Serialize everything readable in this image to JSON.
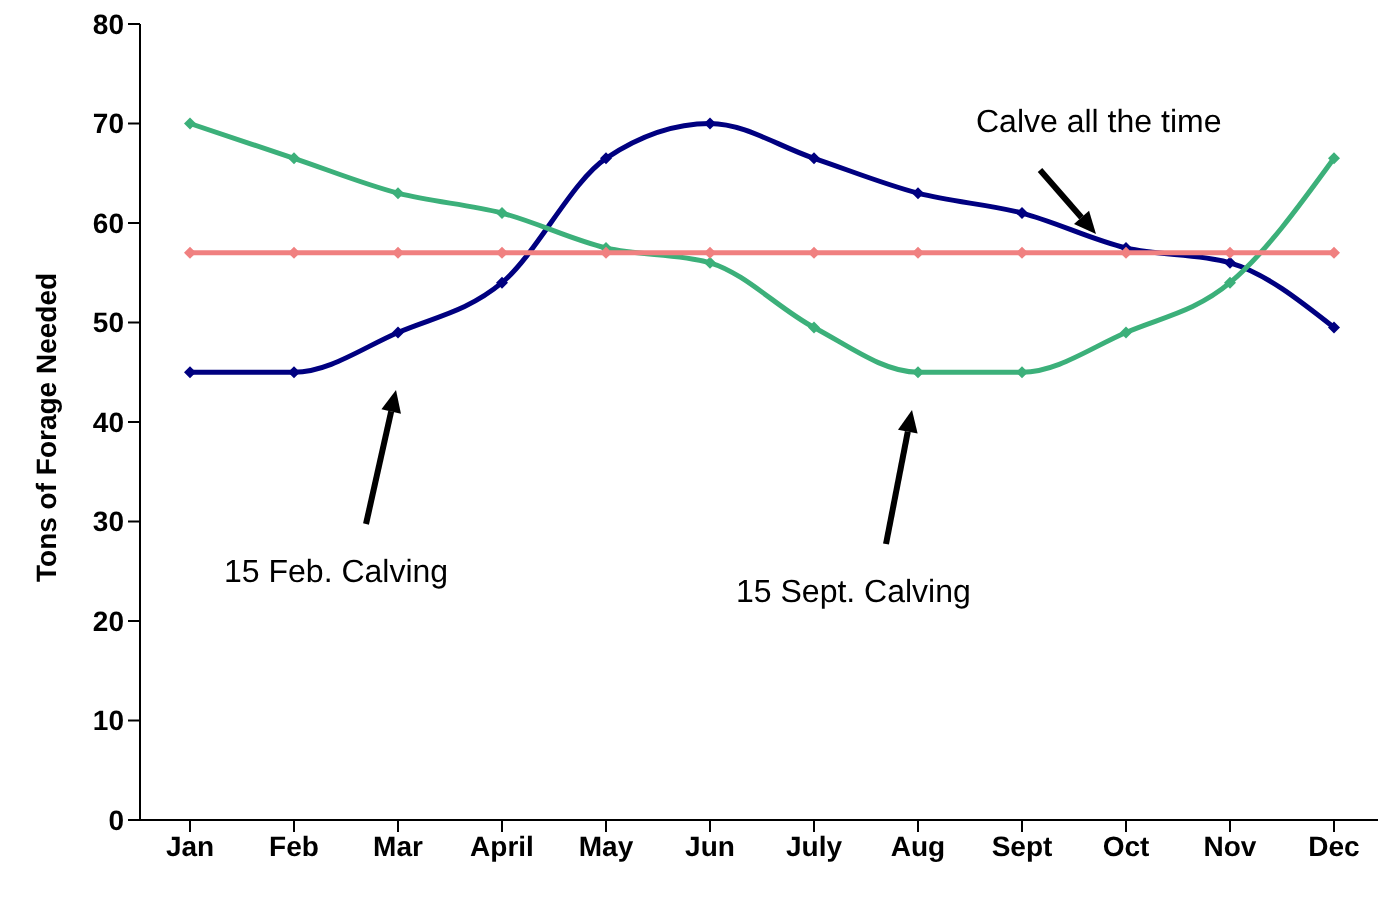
{
  "chart_data": {
    "type": "line",
    "ylabel": "Tons of Forage Needed",
    "categories": [
      "Jan",
      "Feb",
      "Mar",
      "April",
      "May",
      "Jun",
      "July",
      "Aug",
      "Sept",
      "Oct",
      "Nov",
      "Dec"
    ],
    "series": [
      {
        "color": "#000080",
        "values": [
          45,
          45,
          49,
          54,
          66.5,
          70,
          66.5,
          63,
          61,
          57.5,
          56,
          49.5
        ]
      },
      {
        "color": "#3cb07a",
        "values": [
          70,
          66.5,
          63,
          61,
          57.5,
          56,
          49.5,
          45,
          45,
          49,
          54,
          66.5
        ]
      },
      {
        "color": "#f08080",
        "values": [
          57,
          57,
          57,
          57,
          57,
          57,
          57,
          57,
          57,
          57,
          57,
          57
        ]
      }
    ],
    "ylim": [
      0,
      80
    ],
    "yticks": [
      0,
      10,
      20,
      30,
      40,
      50,
      60,
      70,
      80
    ],
    "grid": false,
    "legend": false,
    "marker": "diamond",
    "line_style": "solid",
    "annotations": [
      "Calve all the time",
      "15 Feb. Calving",
      "15 Sept. Calving"
    ]
  }
}
